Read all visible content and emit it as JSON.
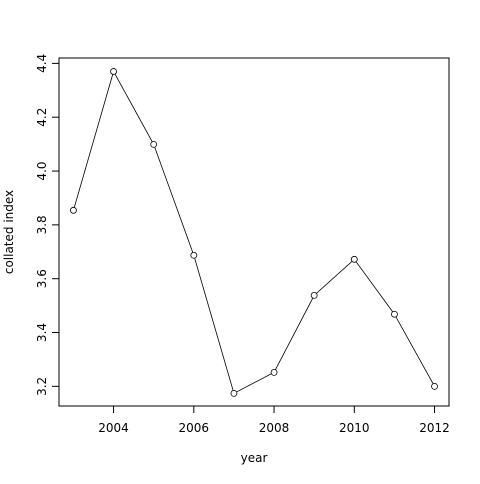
{
  "chart_data": {
    "type": "line",
    "x_label": "year",
    "y_label": "collated index",
    "x": [
      2003,
      2004,
      2005,
      2006,
      2007,
      2008,
      2009,
      2010,
      2011,
      2012
    ],
    "values": [
      3.854,
      4.37,
      4.099,
      3.687,
      3.174,
      3.252,
      3.538,
      3.672,
      3.468,
      3.2
    ],
    "color": "#000000",
    "markers": "open-circle",
    "xlim": [
      2002.64,
      2012.36
    ],
    "ylim": [
      3.127,
      4.42
    ],
    "xticks": [
      2004,
      2006,
      2008,
      2010,
      2012
    ],
    "yticks": [
      3.2,
      3.4,
      3.6,
      3.8,
      {
        "value": 4,
        "label": "4.0"
      },
      4.2,
      4.4
    ],
    "grid": false
  }
}
